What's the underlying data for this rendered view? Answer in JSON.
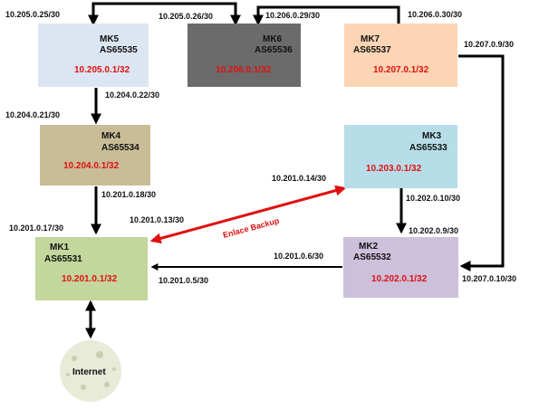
{
  "routers": {
    "mk5": {
      "name": "MK5",
      "as": "AS65535",
      "net": "10.205.0.1/32",
      "color": "#dce6f2"
    },
    "mk6": {
      "name": "MK6",
      "as": "AS65536",
      "net": "10.206.0.1/32",
      "color": "#6b6b6b"
    },
    "mk7": {
      "name": "MK7",
      "as": "AS65537",
      "net": "10.207.0.1/32",
      "color": "#fcd5b4"
    },
    "mk4": {
      "name": "MK4",
      "as": "AS65534",
      "net": "10.204.0.1/32",
      "color": "#c8bd97"
    },
    "mk3": {
      "name": "MK3",
      "as": "AS65533",
      "net": "10.203.0.1/32",
      "color": "#b7dde8"
    },
    "mk1": {
      "name": "MK1",
      "as": "AS65531",
      "net": "10.201.0.1/32",
      "color": "#c3d69b"
    },
    "mk2": {
      "name": "MK2",
      "as": "AS65532",
      "net": "10.202.0.1/32",
      "color": "#ccc0da"
    }
  },
  "links": {
    "l_205_25": "10.205.0.25/30",
    "l_205_26": "10.205.0.26/30",
    "l_206_29": "10.206.0.29/30",
    "l_206_30": "10.206.0.30/30",
    "l_207_9": "10.207.0.9/30",
    "l_204_22": "10.204.0.22/30",
    "l_204_21": "10.204.0.21/30",
    "l_201_14": "10.201.0.14/30",
    "l_201_18": "10.201.0.18/30",
    "l_202_10": "10.202.0.10/30",
    "l_201_13": "10.201.0.13/30",
    "l_201_17": "10.201.0.17/30",
    "l_202_9": "10.202.0.9/30",
    "l_201_6": "10.201.0.6/30",
    "l_201_5": "10.201.0.5/30",
    "l_207_10": "10.207.0.10/30"
  },
  "backup_label": "Enlace Backup",
  "internet_label": "Internet",
  "colors": {
    "backup": "#e01010",
    "net_text": "#e01010",
    "link": "#000000"
  }
}
